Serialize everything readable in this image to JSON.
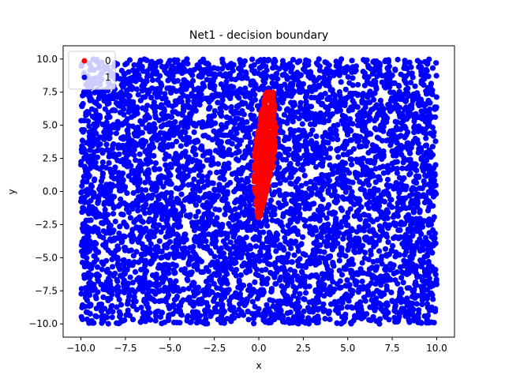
{
  "chart_data": {
    "type": "scatter",
    "title": "Net1 - decision boundary",
    "xlabel": "x",
    "ylabel": "y",
    "xlim": [
      -11.0,
      11.0
    ],
    "ylim": [
      -11.0,
      11.0
    ],
    "x_ticks": [
      -10.0,
      -7.5,
      -5.0,
      -2.5,
      0.0,
      2.5,
      5.0,
      7.5,
      10.0
    ],
    "x_tick_labels": [
      "−10.0",
      "−7.5",
      "−5.0",
      "−2.5",
      "0.0",
      "2.5",
      "5.0",
      "7.5",
      "10.0"
    ],
    "y_ticks": [
      -10.0,
      -7.5,
      -5.0,
      -2.5,
      0.0,
      2.5,
      5.0,
      7.5,
      10.0
    ],
    "y_tick_labels": [
      "−10.0",
      "−7.5",
      "−5.0",
      "−2.5",
      "0.0",
      "2.5",
      "5.0",
      "7.5",
      "10.0"
    ],
    "grid": false,
    "legend_position": "top-left",
    "series": [
      {
        "name": "0",
        "color": "#ff0000",
        "region": {
          "x_center_profile": [
            [
              -2.0,
              0.0
            ],
            [
              0.0,
              0.1
            ],
            [
              2.5,
              0.3
            ],
            [
              5.0,
              0.5
            ],
            [
              7.5,
              0.6
            ]
          ],
          "half_width_profile": [
            [
              -2.0,
              0.05
            ],
            [
              0.0,
              0.35
            ],
            [
              2.5,
              0.6
            ],
            [
              5.0,
              0.5
            ],
            [
              7.5,
              0.2
            ]
          ]
        }
      },
      {
        "name": "1",
        "color": "#0000ff",
        "region": {
          "x_range": [
            -10.0,
            10.0
          ],
          "y_range": [
            -10.0,
            10.0
          ]
        }
      }
    ]
  }
}
